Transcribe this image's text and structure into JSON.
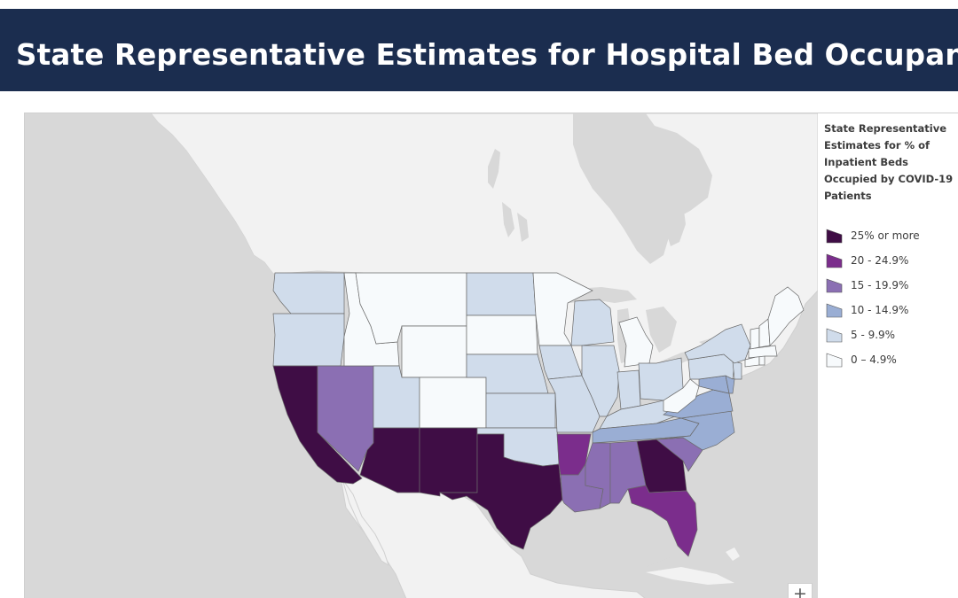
{
  "header": {
    "title": "State Representative Estimates for Hospital Bed Occupancy"
  },
  "legend": {
    "title": "State Representative Estimates for % of Inpatient Beds Occupied by COVID-19 Patients",
    "classes": [
      {
        "label": "25% or more",
        "color": "#3f0d45"
      },
      {
        "label": "20 - 24.9%",
        "color": "#7b2d8c"
      },
      {
        "label": "15 - 19.9%",
        "color": "#8b6fb3"
      },
      {
        "label": "10 - 14.9%",
        "color": "#9aaed4"
      },
      {
        "label": "5 - 9.9%",
        "color": "#d0dceb"
      },
      {
        "label": "0 – 4.9%",
        "color": "#f7fafc"
      }
    ]
  },
  "map": {
    "basemap": {
      "land": "#f2f2f2",
      "water": "#d8d8d8"
    },
    "zoom_in_label": "+",
    "states": [
      {
        "name": "Washington",
        "class": 4
      },
      {
        "name": "Oregon",
        "class": 4
      },
      {
        "name": "California",
        "class": 0
      },
      {
        "name": "Nevada",
        "class": 2
      },
      {
        "name": "Idaho",
        "class": 5
      },
      {
        "name": "Montana",
        "class": 5
      },
      {
        "name": "Wyoming",
        "class": 5
      },
      {
        "name": "Utah",
        "class": 4
      },
      {
        "name": "Arizona",
        "class": 0
      },
      {
        "name": "Colorado",
        "class": 5
      },
      {
        "name": "New Mexico",
        "class": 0
      },
      {
        "name": "North Dakota",
        "class": 4
      },
      {
        "name": "South Dakota",
        "class": 5
      },
      {
        "name": "Nebraska",
        "class": 4
      },
      {
        "name": "Kansas",
        "class": 4
      },
      {
        "name": "Oklahoma",
        "class": 4
      },
      {
        "name": "Texas",
        "class": 0
      },
      {
        "name": "Minnesota",
        "class": 5
      },
      {
        "name": "Iowa",
        "class": 4
      },
      {
        "name": "Missouri",
        "class": 4
      },
      {
        "name": "Arkansas",
        "class": 1
      },
      {
        "name": "Louisiana",
        "class": 2
      },
      {
        "name": "Wisconsin",
        "class": 4
      },
      {
        "name": "Illinois",
        "class": 4
      },
      {
        "name": "Michigan",
        "class": 5
      },
      {
        "name": "Indiana",
        "class": 4
      },
      {
        "name": "Ohio",
        "class": 4
      },
      {
        "name": "Kentucky",
        "class": 4
      },
      {
        "name": "Tennessee",
        "class": 3
      },
      {
        "name": "Mississippi",
        "class": 2
      },
      {
        "name": "Alabama",
        "class": 2
      },
      {
        "name": "Georgia",
        "class": 0
      },
      {
        "name": "Florida",
        "class": 1
      },
      {
        "name": "South Carolina",
        "class": 2
      },
      {
        "name": "North Carolina",
        "class": 3
      },
      {
        "name": "Virginia",
        "class": 3
      },
      {
        "name": "West Virginia",
        "class": 5
      },
      {
        "name": "Maryland",
        "class": 3
      },
      {
        "name": "Delaware",
        "class": 3
      },
      {
        "name": "Pennsylvania",
        "class": 4
      },
      {
        "name": "New Jersey",
        "class": 4
      },
      {
        "name": "New York",
        "class": 4
      },
      {
        "name": "Connecticut",
        "class": 5
      },
      {
        "name": "Rhode Island",
        "class": 5
      },
      {
        "name": "Massachusetts",
        "class": 5
      },
      {
        "name": "Vermont",
        "class": 5
      },
      {
        "name": "New Hampshire",
        "class": 5
      },
      {
        "name": "Maine",
        "class": 5
      }
    ]
  }
}
